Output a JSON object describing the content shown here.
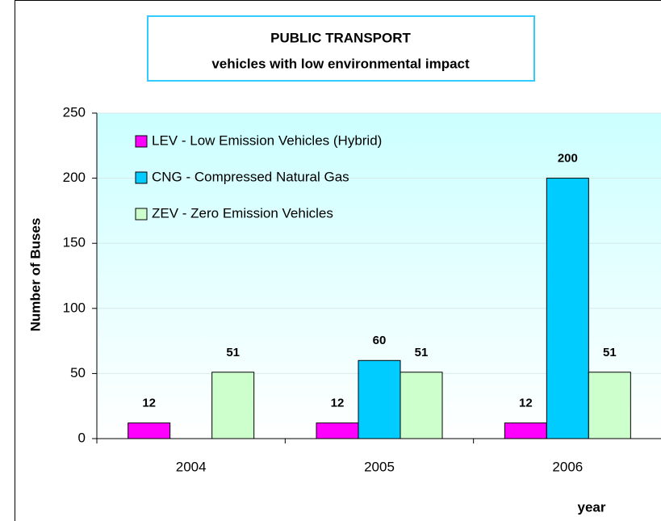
{
  "chart_data": {
    "type": "bar",
    "title": "PUBLIC TRANSPORT",
    "subtitle": "vehicles with low environmental impact",
    "y_label": "Number of Buses",
    "x_label": "year",
    "categories": [
      "2004",
      "2005",
      "2006"
    ],
    "series": [
      {
        "name": "LEV - Low Emission Vehicles (Hybrid)",
        "color": "#ff00ff",
        "values": [
          12,
          12,
          12
        ]
      },
      {
        "name": "CNG - Compressed Natural Gas",
        "color": "#00ccff",
        "values": [
          null,
          60,
          200
        ]
      },
      {
        "name": "ZEV - Zero Emission Vehicles",
        "color": "#ccffcc",
        "values": [
          51,
          51,
          51
        ]
      }
    ],
    "ylim": [
      0,
      250
    ],
    "yticks": [
      0,
      50,
      100,
      150,
      200,
      250
    ],
    "grid": true,
    "legend": "top-left"
  }
}
